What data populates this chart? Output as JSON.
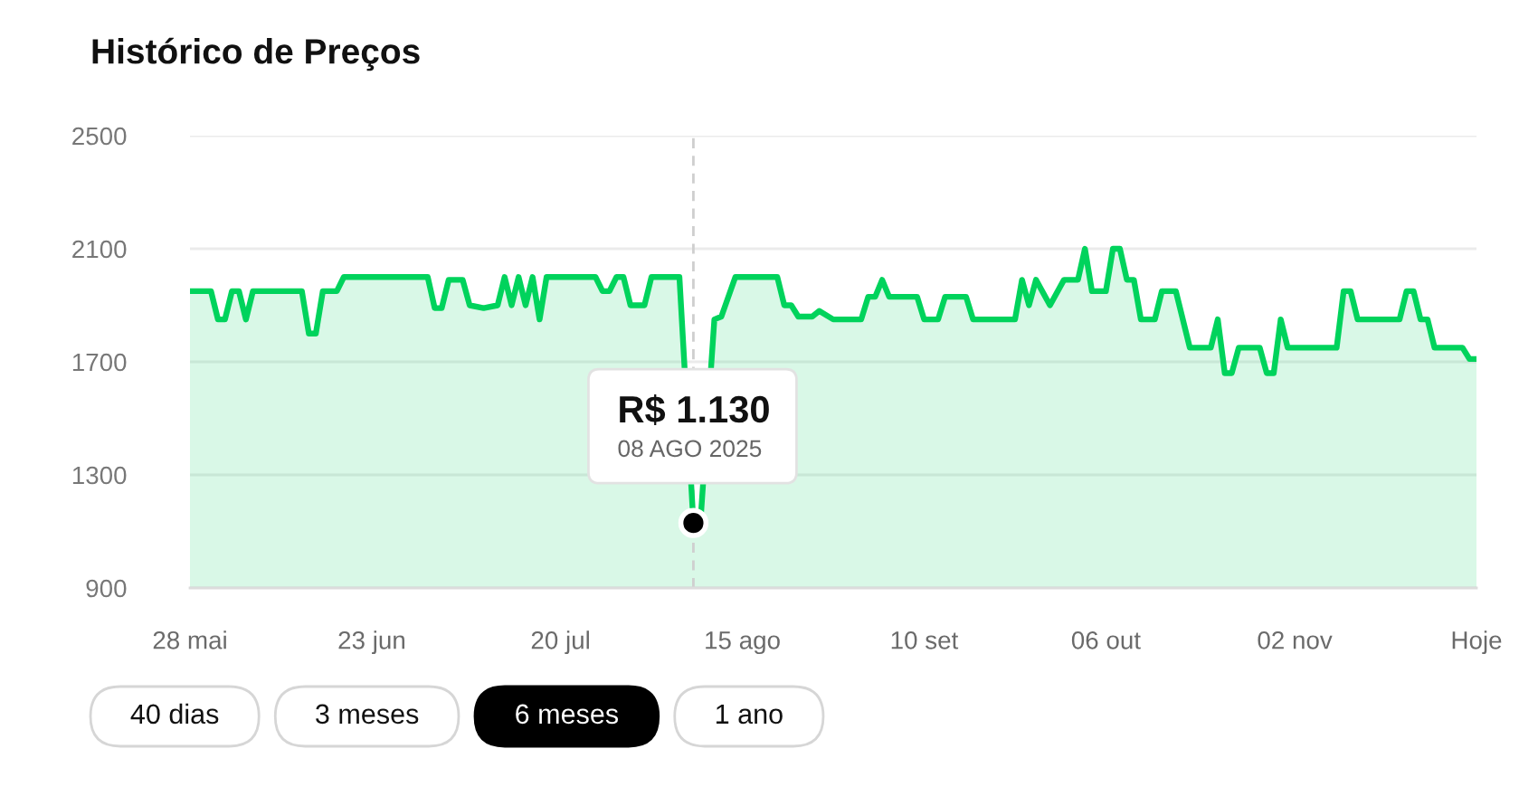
{
  "chart_data": [
    {
      "type": "area",
      "title": "Histórico de Preços",
      "color": "#00d35c",
      "x": [
        "2025-05-28",
        "2025-05-31",
        "2025-06-01",
        "2025-06-02",
        "2025-06-03",
        "2025-06-04",
        "2025-06-05",
        "2025-06-06",
        "2025-06-13",
        "2025-06-14",
        "2025-06-15",
        "2025-06-16",
        "2025-06-18",
        "2025-06-19",
        "2025-07-01",
        "2025-07-02",
        "2025-07-03",
        "2025-07-04",
        "2025-07-06",
        "2025-07-07",
        "2025-07-09",
        "2025-07-11",
        "2025-07-12",
        "2025-07-13",
        "2025-07-14",
        "2025-07-15",
        "2025-07-16",
        "2025-07-17",
        "2025-07-18",
        "2025-07-25",
        "2025-07-26",
        "2025-07-27",
        "2025-07-28",
        "2025-07-29",
        "2025-07-30",
        "2025-08-01",
        "2025-08-02",
        "2025-08-06",
        "2025-08-08",
        "2025-08-09",
        "2025-08-11",
        "2025-08-12",
        "2025-08-14",
        "2025-08-20",
        "2025-08-21",
        "2025-08-22",
        "2025-08-23",
        "2025-08-25",
        "2025-08-26",
        "2025-08-28",
        "2025-09-01",
        "2025-09-02",
        "2025-09-03",
        "2025-09-04",
        "2025-09-05",
        "2025-09-09",
        "2025-09-10",
        "2025-09-12",
        "2025-09-13",
        "2025-09-16",
        "2025-09-17",
        "2025-09-23",
        "2025-09-24",
        "2025-09-25",
        "2025-09-26",
        "2025-09-28",
        "2025-09-30",
        "2025-10-02",
        "2025-10-03",
        "2025-10-04",
        "2025-10-06",
        "2025-10-07",
        "2025-10-08",
        "2025-10-09",
        "2025-10-10",
        "2025-10-11",
        "2025-10-13",
        "2025-10-14",
        "2025-10-16",
        "2025-10-18",
        "2025-10-21",
        "2025-10-22",
        "2025-10-23",
        "2025-10-24",
        "2025-10-25",
        "2025-10-28",
        "2025-10-29",
        "2025-10-30",
        "2025-10-31",
        "2025-11-01",
        "2025-11-08",
        "2025-11-09",
        "2025-11-10",
        "2025-11-11",
        "2025-11-17",
        "2025-11-18",
        "2025-11-19",
        "2025-11-20",
        "2025-11-21",
        "2025-11-22",
        "2025-11-26",
        "2025-11-27",
        "2025-11-28"
      ],
      "values": [
        1950,
        1950,
        1850,
        1850,
        1950,
        1950,
        1850,
        1950,
        1950,
        1800,
        1800,
        1950,
        1950,
        2000,
        2000,
        1890,
        1890,
        1990,
        1990,
        1900,
        1890,
        1900,
        2000,
        1900,
        2000,
        1900,
        2000,
        1850,
        2000,
        2000,
        1950,
        1950,
        2000,
        2000,
        1900,
        1900,
        2000,
        2000,
        1130,
        1130,
        1850,
        1860,
        2000,
        2000,
        1900,
        1900,
        1860,
        1860,
        1880,
        1850,
        1850,
        1930,
        1930,
        1990,
        1930,
        1930,
        1850,
        1850,
        1930,
        1930,
        1850,
        1850,
        1990,
        1900,
        1990,
        1900,
        1990,
        1990,
        2100,
        1950,
        1950,
        2100,
        2100,
        1990,
        1990,
        1850,
        1850,
        1950,
        1950,
        1750,
        1750,
        1850,
        1660,
        1660,
        1750,
        1750,
        1660,
        1660,
        1850,
        1750,
        1750,
        1950,
        1950,
        1850,
        1850,
        1950,
        1950,
        1850,
        1850,
        1750,
        1750,
        1710,
        1710
      ],
      "xlim": [
        "2025-05-28",
        "2025-11-28"
      ],
      "xticks": [
        {
          "value": "2025-05-28",
          "label": "28 mai"
        },
        {
          "value": "2025-06-23",
          "label": "23 jun"
        },
        {
          "value": "2025-07-20",
          "label": "20 jul"
        },
        {
          "value": "2025-08-15",
          "label": "15 ago"
        },
        {
          "value": "2025-09-10",
          "label": "10 set"
        },
        {
          "value": "2025-10-06",
          "label": "06 out"
        },
        {
          "value": "2025-11-02",
          "label": "02 nov"
        },
        {
          "value": "2025-11-28",
          "label": "Hoje"
        }
      ],
      "ylim": [
        900,
        2500
      ],
      "yticks": [
        900,
        1300,
        1700,
        2100,
        2500
      ],
      "grid": "y",
      "ref_lines": [
        {
          "axis": "x",
          "value": "2025-08-08",
          "color": "#cfcfcf",
          "line_style": "dashed"
        }
      ],
      "annotations": [
        "R$ 1.130",
        "08 AGO 2025"
      ]
    },
    {
      "type": "other",
      "categories": [
        "40 dias",
        "3 meses",
        "6 meses",
        "1 ano"
      ],
      "colors": [
        "#ffffff",
        "#ffffff",
        "#000000",
        "#ffffff"
      ]
    }
  ]
}
